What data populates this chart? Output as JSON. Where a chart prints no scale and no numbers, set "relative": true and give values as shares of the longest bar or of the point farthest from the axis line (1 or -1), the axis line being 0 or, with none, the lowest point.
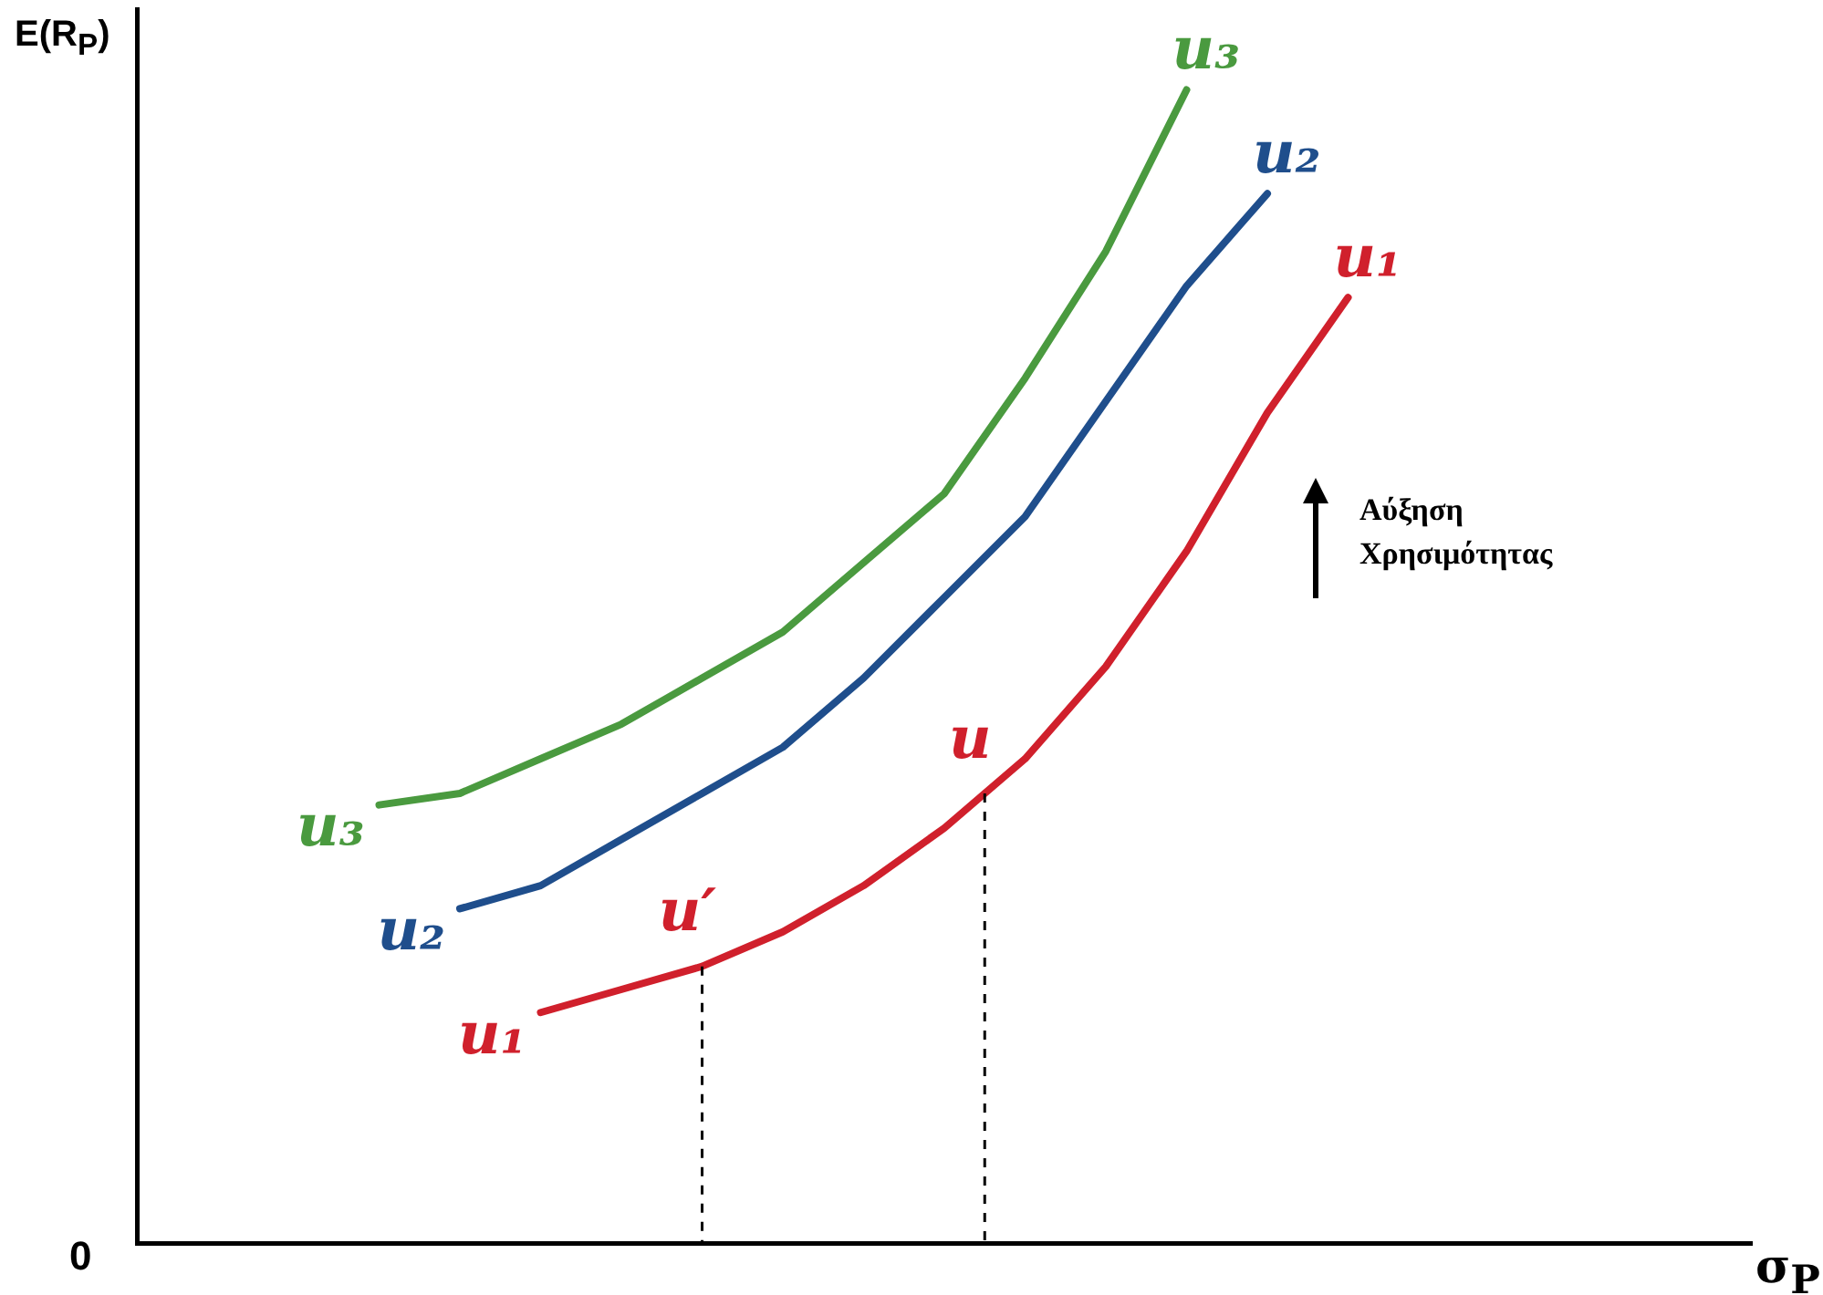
{
  "chart_data": {
    "type": "line",
    "relative": true,
    "xlabel": "σ$_{P}$",
    "ylabel": "E(R$_{P}$)",
    "grid": false,
    "legend": false,
    "marker": "none",
    "categories": [
      null,
      null,
      null,
      null,
      null,
      null,
      null,
      null,
      null,
      null,
      null,
      null,
      null,
      null,
      null,
      null,
      null,
      null,
      null,
      null,
      null,
      null,
      null,
      null,
      null,
      null,
      null,
      null,
      null,
      null,
      null,
      null,
      null,
      null,
      null,
      null,
      null,
      null,
      null,
      null,
      null
    ],
    "series": [
      {
        "name": "u₃",
        "color": "#4a9a3f",
        "values": [
          null,
          null,
          null,
          null,
          null,
          null,
          0.38,
          null,
          0.39,
          null,
          0.42,
          null,
          0.45,
          null,
          0.49,
          null,
          0.53,
          null,
          0.59,
          null,
          0.65,
          null,
          0.75,
          null,
          0.86,
          null,
          1,
          null,
          null,
          null,
          null,
          null,
          null,
          null,
          null,
          null,
          null,
          null,
          null,
          null,
          null
        ]
      },
      {
        "name": "u₂",
        "color": "#1f4e8c",
        "values": [
          null,
          null,
          null,
          null,
          null,
          null,
          null,
          null,
          0.29,
          null,
          0.31,
          null,
          0.35,
          null,
          0.39,
          null,
          0.43,
          null,
          0.49,
          null,
          0.56,
          null,
          0.63,
          null,
          0.73,
          null,
          0.83,
          null,
          0.91,
          null,
          null,
          null,
          null,
          null,
          null,
          null,
          null,
          null,
          null,
          null,
          null
        ]
      },
      {
        "name": "u₁",
        "color": "#d0202c",
        "values": [
          null,
          null,
          null,
          null,
          null,
          null,
          null,
          null,
          null,
          null,
          0.2,
          null,
          0.22,
          null,
          0.24,
          null,
          0.27,
          null,
          0.31,
          null,
          0.36,
          0.39,
          0.42,
          null,
          0.5,
          null,
          0.6,
          null,
          0.72,
          null,
          0.82,
          null,
          null,
          null,
          null,
          null,
          null,
          null,
          null,
          null,
          null
        ]
      }
    ],
    "annotations": [
      {
        "text": "u′",
        "y": 0.24
      },
      {
        "text": "u",
        "y": 0.39
      },
      "0",
      "Αύξηση Χρησιμότητας"
    ]
  }
}
